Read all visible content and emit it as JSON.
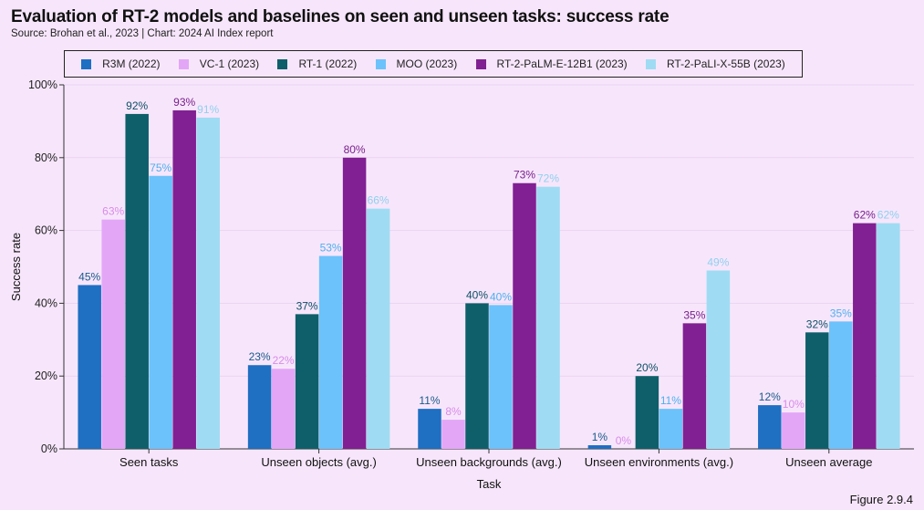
{
  "header": {
    "title": "Evaluation of RT-2 models and baselines on seen and unseen tasks: success rate",
    "source": "Source: Brohan et al., 2023 | Chart: 2024 AI Index report"
  },
  "figure_label": "Figure 2.9.4",
  "chart_data": {
    "type": "bar",
    "title": "Evaluation of RT-2 models and baselines on seen and unseen tasks: success rate",
    "xlabel": "Task",
    "ylabel": "Success rate",
    "ylim": [
      0,
      100
    ],
    "y_ticks": [
      "0%",
      "20%",
      "40%",
      "60%",
      "80%",
      "100%"
    ],
    "y_tick_values": [
      0,
      20,
      40,
      60,
      80,
      100
    ],
    "grid": true,
    "legend_position": "top",
    "categories": [
      "Seen tasks",
      "Unseen objects (avg.)",
      "Unseen backgrounds (avg.)",
      "Unseen environments (avg.)",
      "Unseen average"
    ],
    "series": [
      {
        "name": "R3M (2022)",
        "color": "#1f6fc2",
        "label_color": "#1a5a8a",
        "values": [
          45,
          23,
          11,
          1,
          12
        ],
        "labels": [
          "45%",
          "23%",
          "11%",
          "1%",
          "12%"
        ]
      },
      {
        "name": "VC-1 (2023)",
        "color": "#e3a6f7",
        "label_color": "#d98be8",
        "values": [
          63,
          22,
          8,
          0,
          10
        ],
        "labels": [
          "63%",
          "22%",
          "8%",
          "0%",
          "10%"
        ]
      },
      {
        "name": "RT-1 (2022)",
        "color": "#0e5f6a",
        "label_color": "#0e4f66",
        "values": [
          92,
          37,
          40,
          20,
          32
        ],
        "labels": [
          "92%",
          "37%",
          "40%",
          "20%",
          "32%"
        ]
      },
      {
        "name": "MOO (2023)",
        "color": "#6cc2fb",
        "label_color": "#4eb0ee",
        "values": [
          75,
          53,
          39.5,
          11,
          35
        ],
        "labels": [
          "75%",
          "53%",
          "40%",
          "11%",
          "35%"
        ]
      },
      {
        "name": "RT-2-PaLM-E-12B1 (2023)",
        "color": "#812092",
        "label_color": "#7a1f8c",
        "values": [
          93,
          80,
          73,
          34.5,
          62
        ],
        "labels": [
          "93%",
          "80%",
          "73%",
          "35%",
          "62%"
        ]
      },
      {
        "name": "RT-2-PaLI-X-55B (2023)",
        "color": "#9fdcf3",
        "label_color": "#8fd0ee",
        "values": [
          91,
          66,
          72,
          49,
          62
        ],
        "labels": [
          "91%",
          "66%",
          "72%",
          "49%",
          "62%"
        ]
      }
    ]
  }
}
